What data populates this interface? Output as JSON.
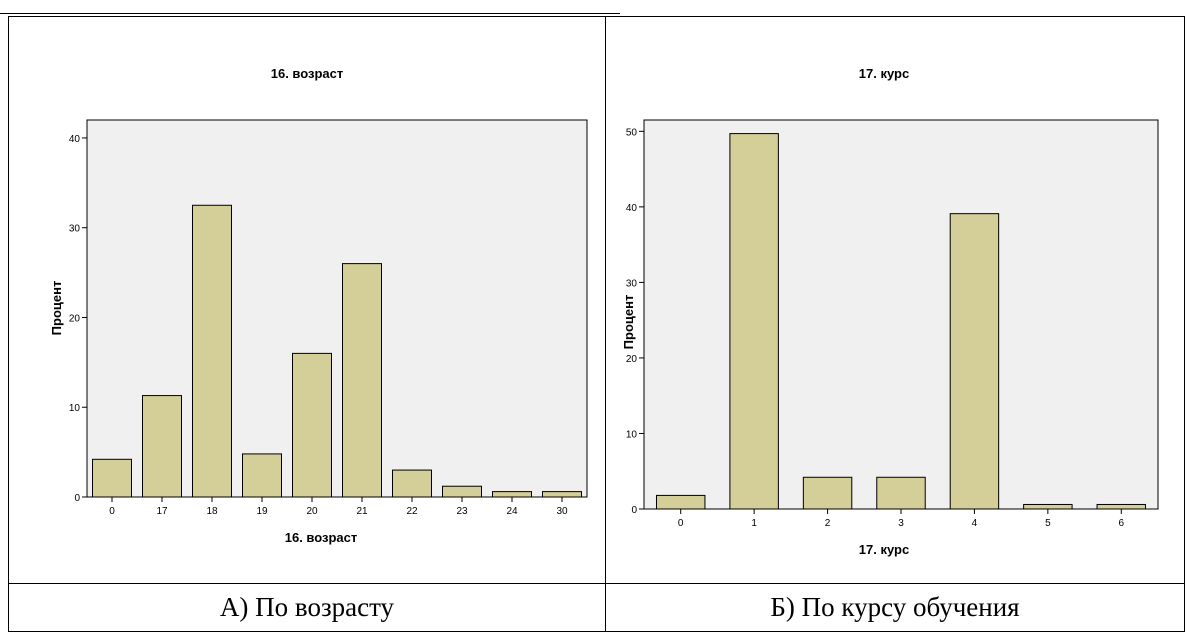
{
  "chart_data": [
    {
      "type": "bar",
      "title": "16. возраст",
      "xlabel": "16. возраст",
      "ylabel": "Процент",
      "categories": [
        "0",
        "17",
        "18",
        "19",
        "20",
        "21",
        "22",
        "23",
        "24",
        "30"
      ],
      "values": [
        4.2,
        11.3,
        32.5,
        4.8,
        16.0,
        26.0,
        3.0,
        1.2,
        0.6,
        0.6
      ],
      "ylim": [
        0,
        42
      ],
      "yticks": [
        0,
        10,
        20,
        30,
        40
      ],
      "grid": false,
      "bar_color": "#d4ce98",
      "plot_background": "#f0f0f0"
    },
    {
      "type": "bar",
      "title": "17. курс",
      "xlabel": "17. курс",
      "ylabel": "Процент",
      "categories": [
        "0",
        "1",
        "2",
        "3",
        "4",
        "5",
        "6"
      ],
      "values": [
        1.8,
        49.7,
        4.2,
        4.2,
        39.1,
        0.6,
        0.6
      ],
      "ylim": [
        0,
        51.5
      ],
      "yticks": [
        0,
        10,
        20,
        30,
        40,
        50
      ],
      "grid": false,
      "bar_color": "#d4ce98",
      "plot_background": "#f0f0f0"
    }
  ],
  "captions": {
    "left": "А) По возрасту",
    "right": "Б) По курсу обучения"
  }
}
